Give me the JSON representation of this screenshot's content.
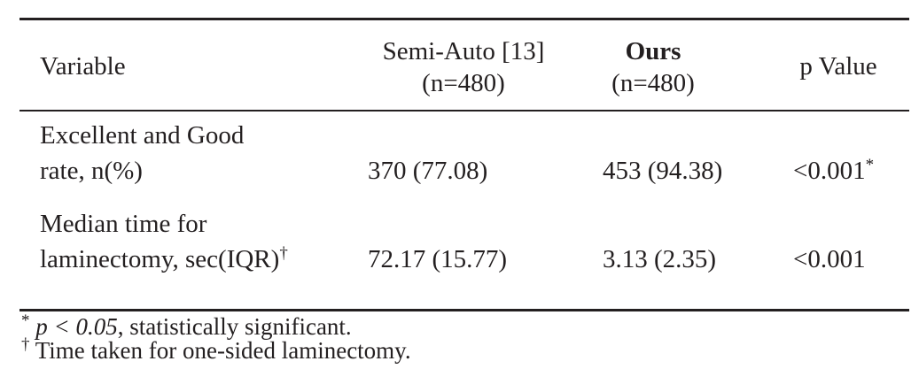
{
  "table": {
    "header": {
      "variable": "Variable",
      "semi_auto": [
        "Semi-Auto [13]",
        "(n=480)"
      ],
      "ours": [
        "Ours",
        "(n=480)"
      ],
      "p_value": "p Value"
    },
    "rows": [
      {
        "variable": [
          "Excellent and Good",
          "rate, n(%)"
        ],
        "variable_sup": null,
        "semi_auto": "370 (77.08)",
        "ours": "453 (94.38)",
        "p_value": "<0.001",
        "p_value_sup": "*"
      },
      {
        "variable": [
          "Median time for",
          "laminectomy, sec(IQR)"
        ],
        "variable_sup": "†",
        "semi_auto": "72.17 (15.77)",
        "ours": "3.13 (2.35)",
        "p_value": "<0.001",
        "p_value_sup": null
      }
    ],
    "notes": [
      {
        "mark": "*",
        "math": "p < 0.05",
        "text": ", statistically significant."
      },
      {
        "mark": "†",
        "math": null,
        "text": "Time taken for one-sided laminectomy."
      }
    ]
  }
}
